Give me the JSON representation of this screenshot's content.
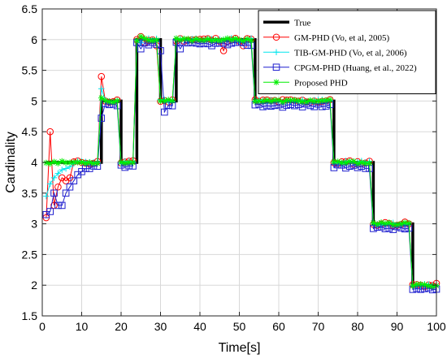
{
  "colors": {
    "True": "#000000",
    "GM-PHD": "#ff0000",
    "TIB-GM-PHD": "#00e5ee",
    "CPGM-PHD": "#1f1fcf",
    "Proposed": "#00ee00",
    "grid": "#d8d8d8",
    "axis": "#262626"
  },
  "chart_data": {
    "type": "line",
    "title": "",
    "xlabel": "Time[s]",
    "ylabel": "Cardinality",
    "xlim": [
      0,
      100
    ],
    "ylim": [
      1.5,
      6.5
    ],
    "xticks": [
      "0",
      "10",
      "20",
      "30",
      "40",
      "50",
      "60",
      "70",
      "80",
      "90",
      "100"
    ],
    "yticks": [
      "1.5",
      "2",
      "2.5",
      "3",
      "3.5",
      "4",
      "4.5",
      "5",
      "5.5",
      "6",
      "6.5"
    ],
    "grid": true,
    "legend_position": "top-right",
    "series": [
      {
        "name": "True",
        "key": "True",
        "marker": "none",
        "segments": [
          [
            1,
            15,
            4
          ],
          [
            15,
            20,
            5
          ],
          [
            20,
            24,
            4
          ],
          [
            24,
            30,
            6
          ],
          [
            30,
            34,
            5
          ],
          [
            34,
            54,
            6
          ],
          [
            54,
            74,
            5
          ],
          [
            74,
            84,
            4
          ],
          [
            84,
            94,
            3
          ],
          [
            94,
            100,
            2
          ]
        ]
      },
      {
        "name": "GM-PHD (Vo, et al, 2005)",
        "key": "GM-PHD",
        "marker": "circle",
        "special": [
          [
            1,
            3.1
          ],
          [
            2,
            4.5
          ],
          [
            3,
            3.3
          ],
          [
            4,
            3.6
          ],
          [
            5,
            3.75
          ],
          [
            6,
            3.7
          ],
          [
            7,
            3.75
          ],
          [
            10,
            4.0
          ],
          [
            15,
            5.4
          ],
          [
            16,
            5.0
          ],
          [
            25,
            6.05
          ],
          [
            26,
            5.95
          ],
          [
            29,
            5.9
          ],
          [
            46,
            5.82
          ],
          [
            51,
            5.9
          ]
        ],
        "noise": 0.03,
        "seed": 11
      },
      {
        "name": "TIB-GM-PHD (Vo, et al, 2006)",
        "key": "TIB-GM-PHD",
        "marker": "plus",
        "special": [
          [
            1,
            3.45
          ],
          [
            2,
            3.65
          ],
          [
            3,
            3.75
          ],
          [
            4,
            3.82
          ],
          [
            5,
            3.88
          ],
          [
            6,
            3.9
          ],
          [
            7,
            3.93
          ],
          [
            15,
            5.2
          ],
          [
            25,
            5.95
          ]
        ],
        "noise": 0.025,
        "seed": 23
      },
      {
        "name": "CPGM-PHD (Huang, et al., 2022)",
        "key": "CPGM-PHD",
        "marker": "square",
        "special": [
          [
            1,
            3.15
          ],
          [
            2,
            3.2
          ],
          [
            3,
            3.5
          ],
          [
            4,
            3.3
          ],
          [
            5,
            3.3
          ],
          [
            6,
            3.5
          ],
          [
            7,
            3.6
          ],
          [
            8,
            3.7
          ],
          [
            9,
            3.8
          ],
          [
            10,
            3.85
          ],
          [
            11,
            3.9
          ],
          [
            12,
            3.9
          ],
          [
            15,
            4.72
          ],
          [
            21,
            3.92
          ],
          [
            25,
            5.85
          ],
          [
            30,
            5.82
          ],
          [
            31,
            4.82
          ],
          [
            35,
            5.85
          ]
        ],
        "noise": 0.03,
        "seed": 37,
        "bias": -0.07
      },
      {
        "name": "Proposed PHD",
        "key": "Proposed",
        "marker": "asterisk",
        "special": [
          [
            15,
            5.05
          ],
          [
            25,
            6.05
          ]
        ],
        "noise": 0.02,
        "seed": 53
      }
    ]
  }
}
